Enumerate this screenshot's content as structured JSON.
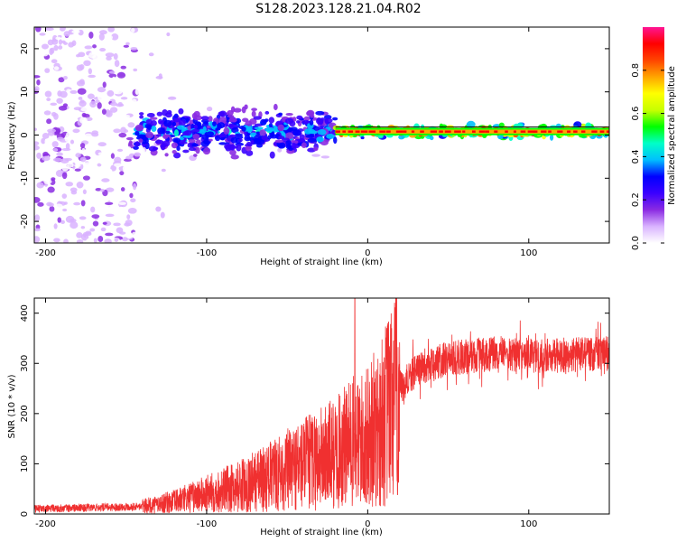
{
  "title": "S128.2023.128.21.04.R02",
  "chart_data": [
    {
      "type": "heatmap",
      "xlabel": "Height of straight line (km)",
      "ylabel": "Frequency (Hz)",
      "xlim": [
        -207,
        150
      ],
      "ylim": [
        -25,
        25
      ],
      "xticks": [
        "-200",
        "-100",
        "0",
        "100"
      ],
      "yticks": [
        "20",
        "10",
        "0",
        "-10",
        "-20"
      ],
      "colorbar": {
        "label": "Normalized spectral amplitude",
        "range": [
          0,
          1
        ],
        "ticks": [
          "0.0",
          "0.2",
          "0.4",
          "0.6",
          "0.8"
        ],
        "colors": [
          "#ffffff",
          "#d9b3ff",
          "#8a2be2",
          "#3a00ff",
          "#0000ff",
          "#00bfff",
          "#00ffc8",
          "#00ff00",
          "#c8ff00",
          "#ffff00",
          "#ffa500",
          "#ff4500",
          "#ff0000",
          "#ff1493"
        ]
      },
      "signal_line_hz": 0.8,
      "bands": [
        {
          "x_from": -207,
          "x_to": -144,
          "spread_hz": 25,
          "peak_amplitude": 0.15
        },
        {
          "x_from": -144,
          "x_to": -120,
          "spread_hz": 25,
          "peak_amplitude": 0.05
        },
        {
          "x_from": -144,
          "x_to": -20,
          "spread_hz": 7,
          "peak_amplitude": 0.35
        },
        {
          "x_from": -20,
          "x_to": 150,
          "spread_hz": 2,
          "peak_amplitude": 0.95
        }
      ]
    },
    {
      "type": "line",
      "xlabel": "Height of straight line (km)",
      "ylabel": "SNR (10 * v/v)",
      "xlim": [
        -207,
        150
      ],
      "ylim": [
        0,
        430
      ],
      "xticks": [
        "-200",
        "-100",
        "0",
        "100"
      ],
      "yticks": [
        "400",
        "300",
        "200",
        "100",
        "0"
      ],
      "color": "#f03030",
      "trend": [
        {
          "x": -207,
          "y": 10
        },
        {
          "x": -140,
          "y": 15
        },
        {
          "x": -120,
          "y": 25
        },
        {
          "x": -100,
          "y": 40
        },
        {
          "x": -80,
          "y": 55
        },
        {
          "x": -60,
          "y": 75
        },
        {
          "x": -40,
          "y": 100
        },
        {
          "x": -20,
          "y": 120
        },
        {
          "x": -10,
          "y": 140
        },
        {
          "x": 0,
          "y": 150
        },
        {
          "x": 10,
          "y": 190
        },
        {
          "x": 20,
          "y": 250
        },
        {
          "x": 30,
          "y": 285
        },
        {
          "x": 50,
          "y": 310
        },
        {
          "x": 80,
          "y": 320
        },
        {
          "x": 110,
          "y": 315
        },
        {
          "x": 150,
          "y": 320
        }
      ],
      "peak": {
        "x": -8,
        "y": 430
      }
    }
  ]
}
